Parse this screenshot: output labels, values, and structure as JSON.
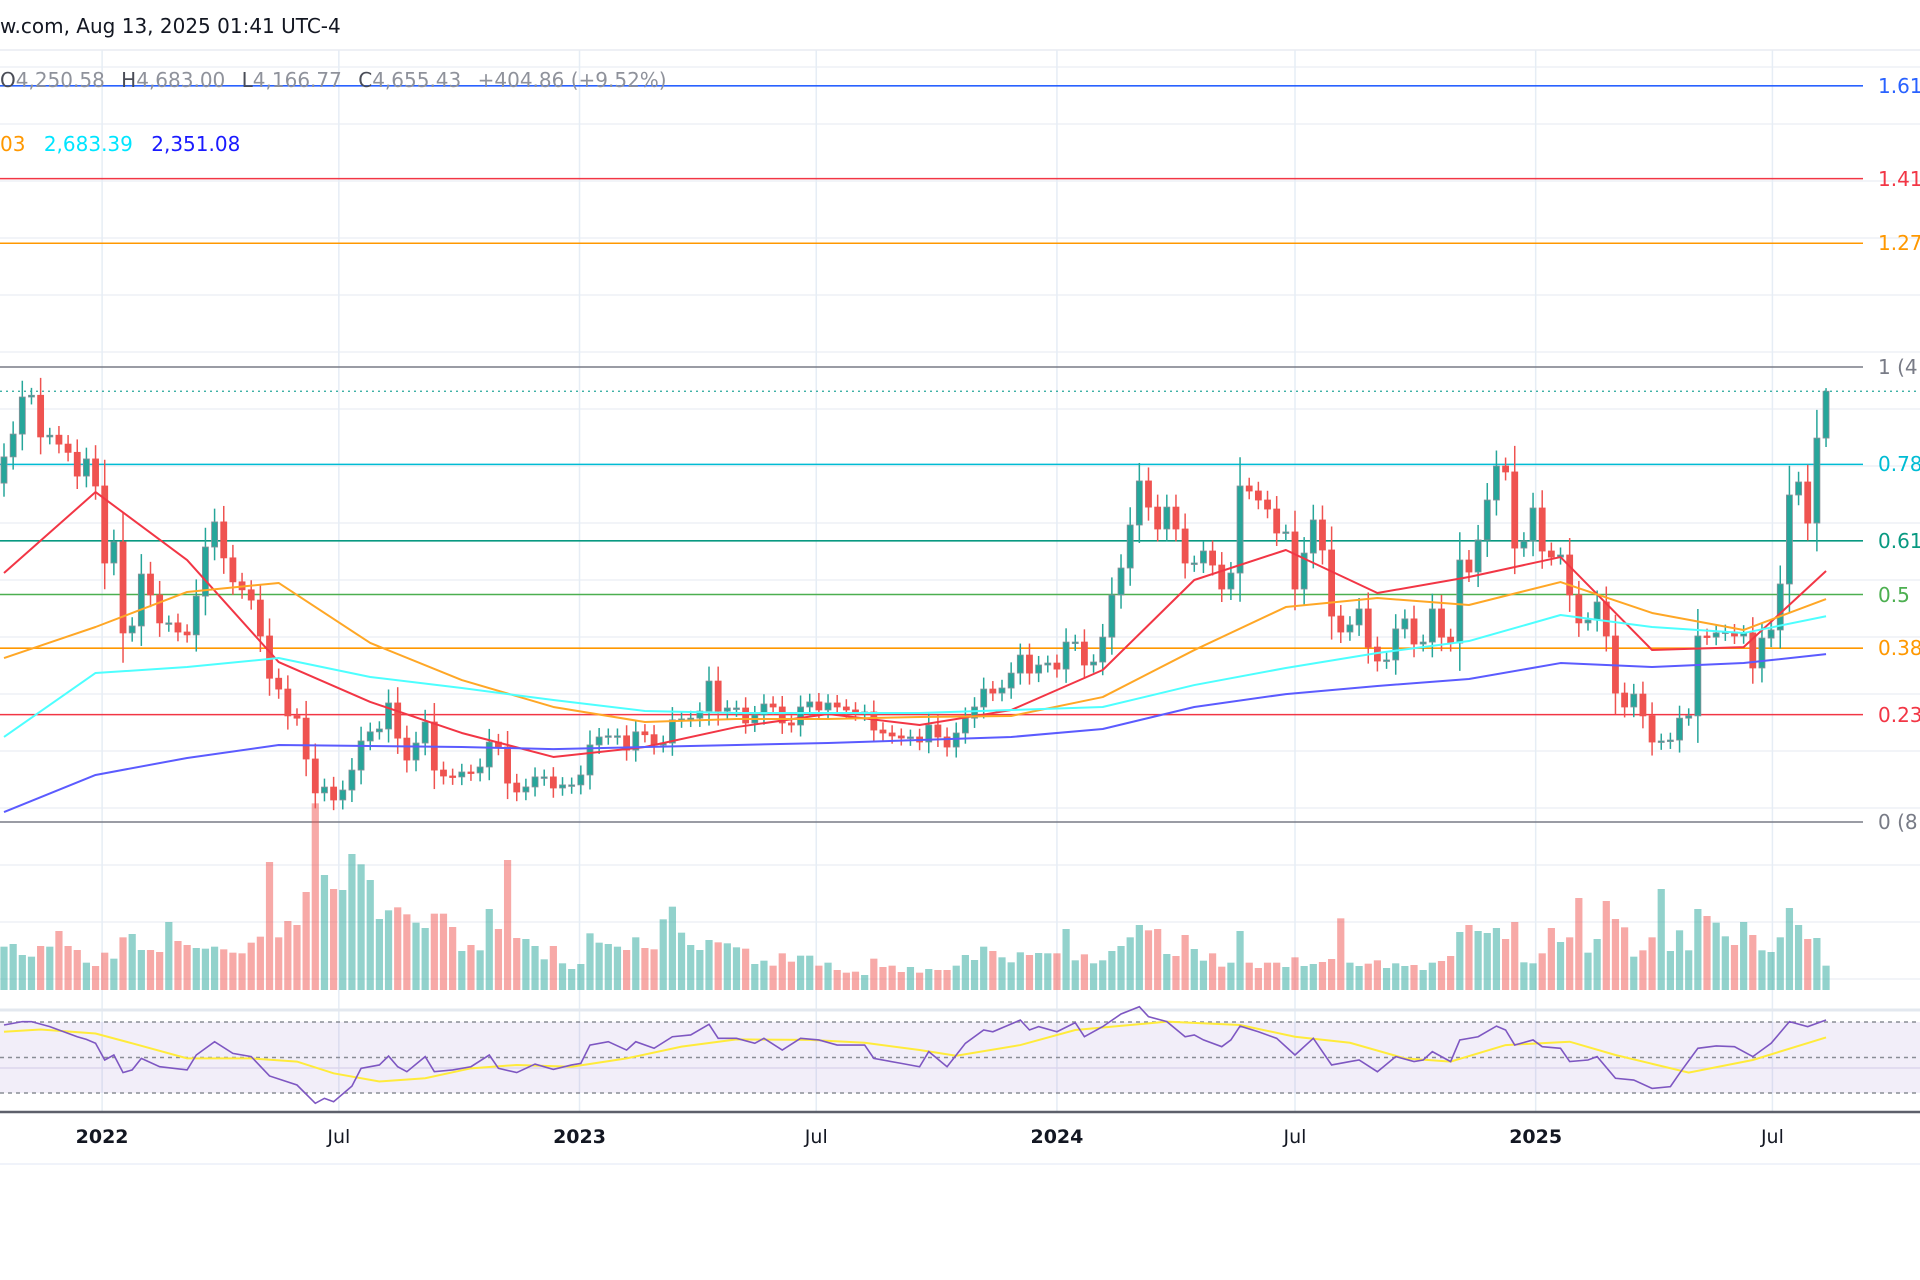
{
  "header": {
    "source_text": "w.com, Aug 13, 2025 01:41 UTC-4"
  },
  "ohlc": {
    "o_label": "O",
    "o": "4,250.58",
    "h_label": "H",
    "h": "4,683.00",
    "l_label": "L",
    "l": "4,166.77",
    "c_label": "C",
    "c": "4,655.43",
    "change": "+404.86 (+9.52%)"
  },
  "ma_values": [
    {
      "text": "03",
      "color": "#ff9800"
    },
    {
      "text": "2,683.39",
      "color": "#00e5ff"
    },
    {
      "text": "2,351.08",
      "color": "#1a1aff"
    }
  ],
  "chart_data": {
    "type": "candlestick",
    "title": "",
    "colors": {
      "up": "#26a69a",
      "down": "#ef5350",
      "rsi": "#7e57c2",
      "rsi_ma": "#ffeb3b"
    },
    "last_candle": {
      "open": 4250.58,
      "high": 4683.0,
      "low": 4166.77,
      "close": 4655.43
    },
    "first_open": 3850,
    "closes": [
      4080,
      4280,
      4605,
      4620,
      4255,
      4270,
      4192,
      4120,
      3912,
      4062,
      3825,
      3150,
      3335,
      2537,
      2598,
      3053,
      2870,
      2625,
      2625,
      2545,
      2520,
      2860,
      3290,
      3510,
      3195,
      2985,
      2915,
      2825,
      2510,
      2140,
      2045,
      1810,
      1790,
      1432,
      1135,
      1186,
      1073,
      1160,
      1335,
      1590,
      1670,
      1695,
      1923,
      1615,
      1423,
      1572,
      1756,
      1335,
      1283,
      1275,
      1318,
      1310,
      1362,
      1580,
      1537,
      1221,
      1143,
      1187,
      1275,
      1275,
      1178,
      1205,
      1205,
      1292,
      1555,
      1625,
      1635,
      1635,
      1510,
      1670,
      1645,
      1555,
      1572,
      1775,
      1783,
      1790,
      1852,
      2115,
      1852,
      1879,
      1879,
      1748,
      1818,
      1914,
      1888,
      1748,
      1730,
      1888,
      1932,
      1862,
      1923,
      1888,
      1862,
      1835,
      1844,
      1686,
      1660,
      1634,
      1616,
      1625,
      1581,
      1730,
      1625,
      1537,
      1660,
      1790,
      1888,
      2045,
      2010,
      2054,
      2185,
      2343,
      2185,
      2256,
      2273,
      2220,
      2457,
      2457,
      2256,
      2282,
      2500,
      2870,
      3106,
      3483,
      3869,
      3640,
      3448,
      3640,
      3448,
      3150,
      3150,
      3255,
      3132,
      2922,
      3062,
      3825,
      3781,
      3702,
      3623,
      3413,
      3422,
      2922,
      3237,
      3527,
      3264,
      2685,
      2545,
      2607,
      2747,
      2413,
      2291,
      2300,
      2572,
      2660,
      2440,
      2457,
      2747,
      2500,
      2448,
      3176,
      3071,
      3352,
      3702,
      4000,
      3948,
      3281,
      3343,
      3632,
      3255,
      3202,
      3220,
      2870,
      2625,
      2650,
      2808,
      2510,
      2010,
      1888,
      2001,
      1810,
      1581,
      1590,
      1598,
      1790,
      1810,
      2510,
      2500,
      2537,
      2545,
      2510,
      2537,
      2230,
      2492,
      2563,
      2966,
      3746,
      3860,
      3500,
      4245,
      4655.43
    ],
    "volume_relative": [
      130,
      138,
      105,
      100,
      132,
      130,
      177,
      132,
      120,
      82,
      72,
      112,
      94,
      158,
      168,
      120,
      120,
      114,
      204,
      147,
      135,
      126,
      124,
      130,
      122,
      112,
      110,
      142,
      160,
      384,
      158,
      207,
      195,
      294,
      560,
      345,
      303,
      300,
      408,
      377,
      330,
      213,
      239,
      248,
      227,
      202,
      186,
      229,
      229,
      189,
      117,
      135,
      119,
      243,
      183,
      390,
      156,
      153,
      132,
      92,
      132,
      80,
      63,
      78,
      170,
      142,
      138,
      130,
      120,
      158,
      126,
      122,
      212,
      250,
      172,
      135,
      120,
      150,
      143,
      140,
      128,
      124,
      78,
      88,
      73,
      110,
      85,
      103,
      103,
      73,
      82,
      60,
      52,
      55,
      45,
      94,
      69,
      73,
      54,
      69,
      52,
      63,
      60,
      60,
      73,
      105,
      90,
      130,
      117,
      98,
      83,
      113,
      105,
      111,
      110,
      110,
      183,
      89,
      107,
      80,
      89,
      117,
      132,
      158,
      195,
      179,
      183,
      108,
      102,
      165,
      123,
      88,
      110,
      70,
      82,
      177,
      82,
      66,
      82,
      82,
      69,
      98,
      72,
      78,
      84,
      93,
      215,
      82,
      72,
      79,
      89,
      66,
      80,
      72,
      75,
      60,
      82,
      87,
      102,
      174,
      195,
      177,
      171,
      186,
      153,
      204,
      83,
      80,
      110,
      186,
      144,
      158,
      276,
      112,
      153,
      267,
      213,
      188,
      100,
      119,
      158,
      303,
      117,
      179,
      119,
      243,
      222,
      202,
      161,
      135,
      204,
      165,
      119,
      114,
      158,
      246,
      195,
      153,
      156,
      73
    ],
    "moving_averages": [
      {
        "color": "#f23645",
        "values_every_10_bars": [
          3062,
          3772,
          3176,
          2282,
          1932,
          1660,
          1450,
          1537,
          1712,
          1826,
          1730,
          1861,
          2212,
          3001,
          3264,
          2887,
          3027,
          3202,
          2387,
          2413,
          3080
        ]
      },
      {
        "color": "#ffa726",
        "values_every_10_bars": [
          2317,
          2589,
          2896,
          2975,
          2449,
          2124,
          1888,
          1756,
          1783,
          1783,
          1800,
          1809,
          1975,
          2387,
          2764,
          2843,
          2782,
          2983,
          2712,
          2563,
          2834
        ]
      },
      {
        "color": "#4dffff",
        "values_every_10_bars": [
          1625,
          2186,
          2238,
          2317,
          2151,
          2054,
          1949,
          1853,
          1835,
          1835,
          1835,
          1861,
          1888,
          2080,
          2230,
          2361,
          2466,
          2694,
          2589,
          2536,
          2683.39
        ]
      },
      {
        "color": "#5b5bff",
        "values_every_10_bars": [
          967,
          1292,
          1441,
          1555,
          1546,
          1537,
          1519,
          1537,
          1555,
          1572,
          1599,
          1625,
          1695,
          1888,
          2001,
          2072,
          2133,
          2273,
          2238,
          2273,
          2351.08
        ]
      }
    ],
    "fib_levels": [
      {
        "level": 1.618,
        "label": "1.61",
        "color": "#2962ff"
      },
      {
        "level": 1.414,
        "label": "1.41",
        "color": "#f23645"
      },
      {
        "level": 1.272,
        "label": "1.27",
        "color": "#ff9800"
      },
      {
        "level": 1,
        "label": "1 (4",
        "color": "#787b86"
      },
      {
        "level": 0.786,
        "label": "0.78",
        "color": "#00bcd4"
      },
      {
        "level": 0.618,
        "label": "0.61",
        "color": "#089981"
      },
      {
        "level": 0.5,
        "label": "0.5",
        "color": "#4caf50"
      },
      {
        "level": 0.382,
        "label": "0.38",
        "color": "#ff9800"
      },
      {
        "level": 0.236,
        "label": "0.23",
        "color": "#f23645"
      },
      {
        "level": 0,
        "label": "0 (8",
        "color": "#787b86"
      }
    ],
    "rsi": {
      "levels": [
        70,
        50,
        30
      ],
      "points": [
        [
          0,
          68.3
        ],
        [
          2,
          70.2
        ],
        [
          3,
          70.2
        ],
        [
          5,
          67.4
        ],
        [
          8,
          61.7
        ],
        [
          9,
          60.2
        ],
        [
          10,
          58.0
        ],
        [
          11,
          48.6
        ],
        [
          12,
          51.4
        ],
        [
          13,
          41.5
        ],
        [
          14,
          43.0
        ],
        [
          15,
          49.5
        ],
        [
          17,
          44.8
        ],
        [
          20,
          43.0
        ],
        [
          21,
          51.4
        ],
        [
          23,
          58.9
        ],
        [
          25,
          52.3
        ],
        [
          27,
          50.5
        ],
        [
          29,
          39.6
        ],
        [
          32,
          34.5
        ],
        [
          34,
          24.2
        ],
        [
          35,
          27.0
        ],
        [
          36,
          25.1
        ],
        [
          38,
          33.9
        ],
        [
          39,
          43.9
        ],
        [
          41,
          45.8
        ],
        [
          42,
          50.8
        ],
        [
          43,
          44.8
        ],
        [
          44,
          42.0
        ],
        [
          46,
          50.5
        ],
        [
          47,
          42.0
        ],
        [
          49,
          43.0
        ],
        [
          51,
          44.8
        ],
        [
          53,
          51.4
        ],
        [
          54,
          43.9
        ],
        [
          56,
          41.5
        ],
        [
          58,
          46.3
        ],
        [
          60,
          43.3
        ],
        [
          62,
          45.8
        ],
        [
          63,
          46.7
        ],
        [
          64,
          57.0
        ],
        [
          66,
          58.9
        ],
        [
          68,
          54.2
        ],
        [
          69,
          58.9
        ],
        [
          71,
          55.2
        ],
        [
          73,
          61.7
        ],
        [
          75,
          62.7
        ],
        [
          77,
          68.7
        ],
        [
          78,
          60.8
        ],
        [
          80,
          60.8
        ],
        [
          82,
          58.0
        ],
        [
          83,
          60.8
        ],
        [
          85,
          54.2
        ],
        [
          87,
          60.8
        ],
        [
          89,
          59.9
        ],
        [
          91,
          57.0
        ],
        [
          94,
          57.0
        ],
        [
          95,
          49.5
        ],
        [
          98,
          46.7
        ],
        [
          100,
          44.8
        ],
        [
          101,
          53.3
        ],
        [
          103,
          44.8
        ],
        [
          105,
          58.0
        ],
        [
          107,
          65.5
        ],
        [
          108,
          64.5
        ],
        [
          111,
          71.1
        ],
        [
          112,
          65.5
        ],
        [
          113,
          67.4
        ],
        [
          115,
          64.5
        ],
        [
          117,
          69.6
        ],
        [
          118,
          61.7
        ],
        [
          120,
          67.4
        ],
        [
          122,
          74.5
        ],
        [
          124,
          78.6
        ],
        [
          125,
          73.0
        ],
        [
          127,
          70.2
        ],
        [
          129,
          61.7
        ],
        [
          130,
          62.7
        ],
        [
          131,
          59.9
        ],
        [
          133,
          56.1
        ],
        [
          134,
          59.9
        ],
        [
          135,
          67.7
        ],
        [
          137,
          64.5
        ],
        [
          139,
          60.8
        ],
        [
          141,
          51.4
        ],
        [
          143,
          60.8
        ],
        [
          145,
          45.8
        ],
        [
          147,
          47.7
        ],
        [
          148,
          48.6
        ],
        [
          150,
          42.0
        ],
        [
          152,
          50.5
        ],
        [
          154,
          47.7
        ],
        [
          155,
          48.6
        ],
        [
          156,
          53.3
        ],
        [
          158,
          47.7
        ],
        [
          159,
          59.9
        ],
        [
          161,
          61.7
        ],
        [
          163,
          67.7
        ],
        [
          164,
          65.5
        ],
        [
          165,
          57.0
        ],
        [
          167,
          59.9
        ],
        [
          168,
          56.1
        ],
        [
          170,
          55.2
        ],
        [
          171,
          47.7
        ],
        [
          173,
          48.6
        ],
        [
          174,
          50.5
        ],
        [
          176,
          38.3
        ],
        [
          178,
          37.3
        ],
        [
          180,
          32.6
        ],
        [
          182,
          33.6
        ],
        [
          183,
          41.1
        ],
        [
          185,
          55.2
        ],
        [
          187,
          56.5
        ],
        [
          189,
          56.1
        ],
        [
          191,
          50.5
        ],
        [
          193,
          58.0
        ],
        [
          195,
          70.2
        ],
        [
          197,
          67.4
        ],
        [
          199,
          71.1
        ]
      ],
      "ma_points": [
        [
          0,
          64.5
        ],
        [
          4,
          65.8
        ],
        [
          10,
          63.5
        ],
        [
          14,
          58.0
        ],
        [
          20,
          49.5
        ],
        [
          27,
          49.5
        ],
        [
          32,
          47.7
        ],
        [
          36,
          41.1
        ],
        [
          41,
          36.5
        ],
        [
          46,
          38.3
        ],
        [
          51,
          43.9
        ],
        [
          56,
          45.8
        ],
        [
          62,
          44.8
        ],
        [
          68,
          49.5
        ],
        [
          74,
          56.1
        ],
        [
          80,
          60.2
        ],
        [
          88,
          59.9
        ],
        [
          94,
          58.3
        ],
        [
          100,
          54.2
        ],
        [
          104,
          51.0
        ],
        [
          111,
          57.0
        ],
        [
          117,
          65.5
        ],
        [
          123,
          68.3
        ],
        [
          127,
          70.2
        ],
        [
          135,
          68.3
        ],
        [
          141,
          61.7
        ],
        [
          147,
          58.3
        ],
        [
          153,
          49.5
        ],
        [
          158,
          47.7
        ],
        [
          164,
          57.0
        ],
        [
          171,
          58.9
        ],
        [
          176,
          51.4
        ],
        [
          184,
          41.5
        ],
        [
          191,
          48.6
        ],
        [
          199,
          61.3
        ]
      ]
    },
    "x_ticks": [
      {
        "label": "2022",
        "date": "2022-01-01",
        "year": true
      },
      {
        "label": "Jul",
        "date": "2022-07-01",
        "year": false
      },
      {
        "label": "2023",
        "date": "2023-01-01",
        "year": true
      },
      {
        "label": "Jul",
        "date": "2023-07-01",
        "year": false
      },
      {
        "label": "2024",
        "date": "2024-01-01",
        "year": true
      },
      {
        "label": "Jul",
        "date": "2024-07-01",
        "year": false
      },
      {
        "label": "2025",
        "date": "2025-01-01",
        "year": true
      },
      {
        "label": "Jul",
        "date": "2025-07-01",
        "year": false
      }
    ]
  }
}
